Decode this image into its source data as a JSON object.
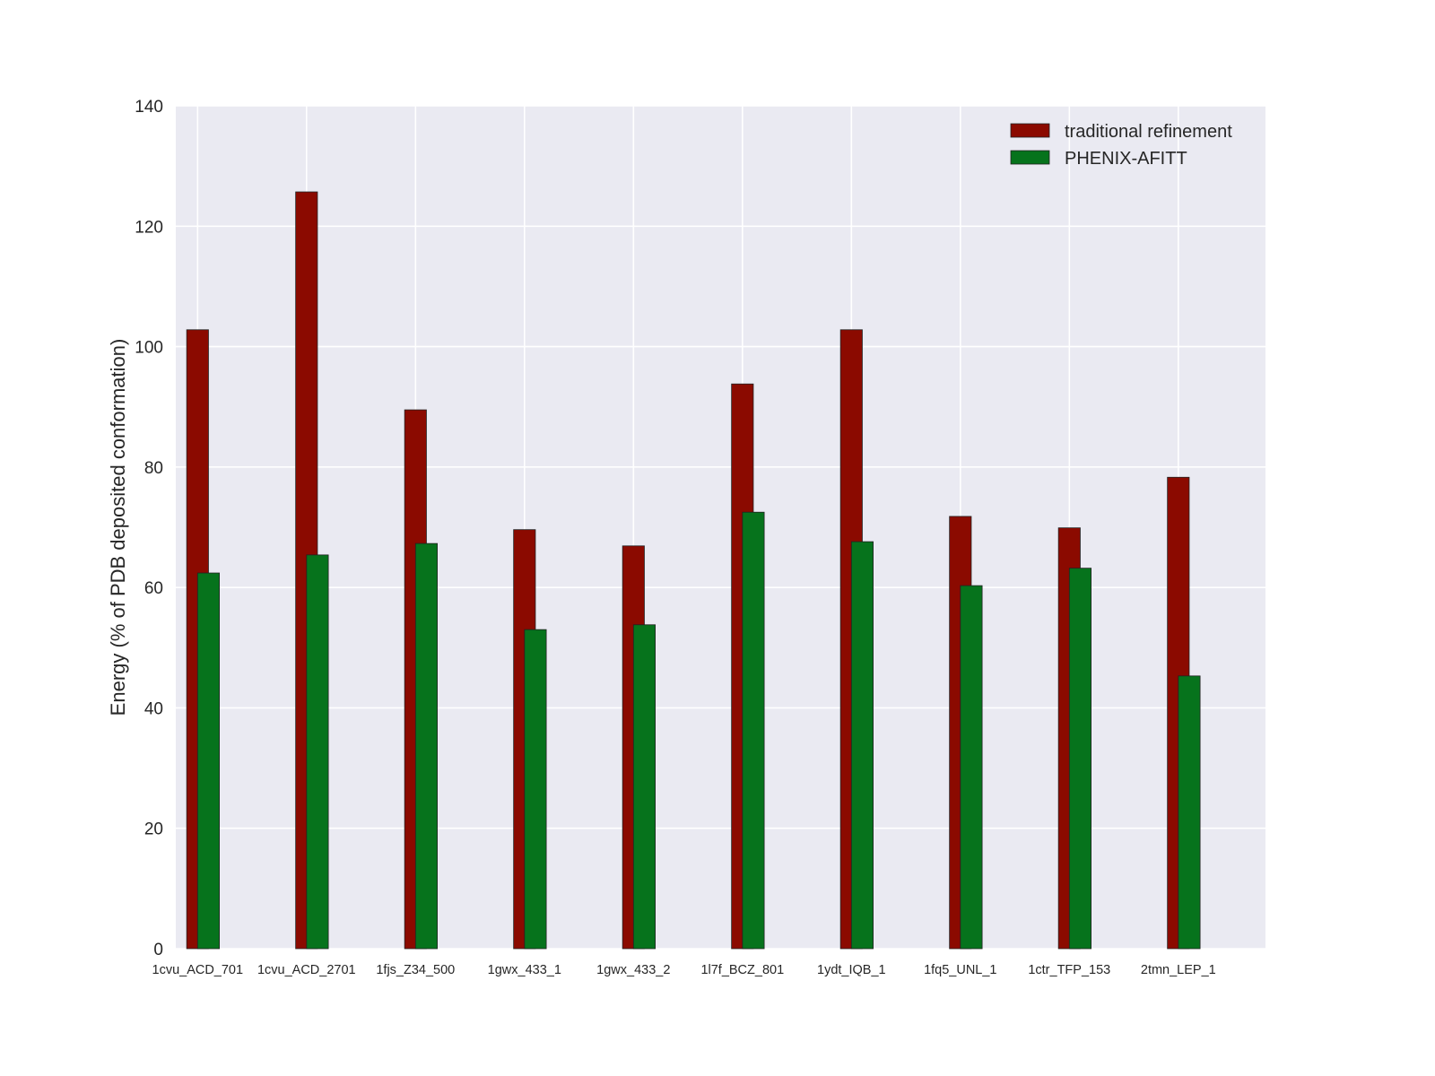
{
  "chart_data": {
    "type": "bar",
    "title": "",
    "xlabel": "",
    "ylabel": "Energy (% of PDB deposited conformation)",
    "ylim": [
      0,
      140
    ],
    "yticks": [
      0,
      20,
      40,
      60,
      80,
      100,
      120,
      140
    ],
    "grid": true,
    "legend_placement": "top-right",
    "categories": [
      "1cvu_ACD_701",
      "1cvu_ACD_2701",
      "1fjs_Z34_500",
      "1gwx_433_1",
      "1gwx_433_2",
      "1l7f_BCZ_801",
      "1ydt_IQB_1",
      "1fq5_UNL_1",
      "1ctr_TFP_153",
      "2tmn_LEP_1"
    ],
    "series": [
      {
        "name": "traditional refinement",
        "color": "#8b0a00",
        "values": [
          102.8,
          125.7,
          89.5,
          69.6,
          66.9,
          93.8,
          102.8,
          71.8,
          69.9,
          78.3
        ]
      },
      {
        "name": "PHENIX-AFITT",
        "color": "#06731c",
        "values": [
          62.4,
          65.4,
          67.3,
          53.0,
          53.8,
          72.5,
          67.6,
          60.3,
          63.2,
          45.3
        ]
      }
    ],
    "background_color": "#eaeaf2"
  }
}
